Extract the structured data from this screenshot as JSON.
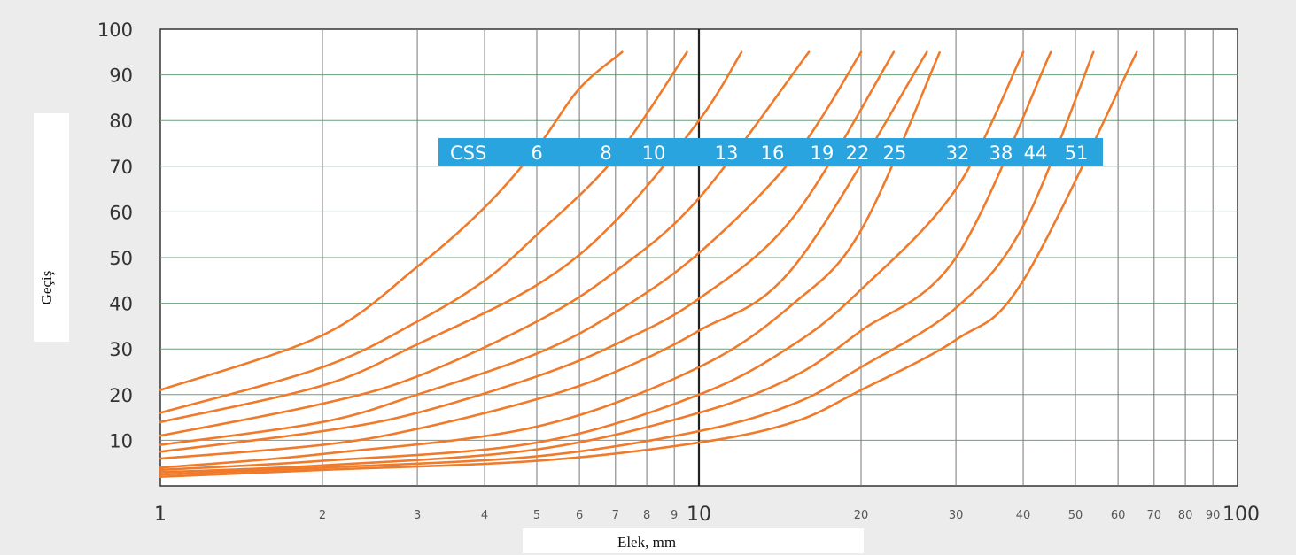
{
  "chart_data": {
    "type": "line",
    "xlabel": "Elek, mm",
    "ylabel": "Geçiş",
    "xscale": "log",
    "xlim": [
      1,
      100
    ],
    "ylim": [
      0,
      100
    ],
    "grid": true,
    "y_ticks": [
      10,
      20,
      30,
      40,
      50,
      60,
      70,
      80,
      90,
      100
    ],
    "x_ticks": [
      {
        "value": 1,
        "label": "1"
      },
      {
        "value": 2,
        "label": "2"
      },
      {
        "value": 3,
        "label": "3"
      },
      {
        "value": 4,
        "label": "4"
      },
      {
        "value": 5,
        "label": "5"
      },
      {
        "value": 6,
        "label": "6"
      },
      {
        "value": 7,
        "label": "7"
      },
      {
        "value": 8,
        "label": "8"
      },
      {
        "value": 9,
        "label": "9"
      },
      {
        "value": 10,
        "label": "10"
      },
      {
        "value": 20,
        "label": "20"
      },
      {
        "value": 30,
        "label": "30"
      },
      {
        "value": 40,
        "label": "40"
      },
      {
        "value": 50,
        "label": "50"
      },
      {
        "value": 60,
        "label": "60"
      },
      {
        "value": 70,
        "label": "70"
      },
      {
        "value": 80,
        "label": "80"
      },
      {
        "value": 90,
        "label": "90"
      },
      {
        "value": 100,
        "label": "100"
      }
    ],
    "legend_title": "CSS",
    "legend_placement": "upper-center",
    "line_color": "#f07a2a",
    "legend_bg": "#2aa4de",
    "series": [
      {
        "name": "6",
        "x": [
          1,
          2,
          3,
          4,
          5,
          6,
          7.2
        ],
        "y": [
          21,
          33,
          48,
          61,
          74,
          87,
          95
        ]
      },
      {
        "name": "8",
        "x": [
          1,
          2,
          3,
          4,
          5,
          7,
          9.5
        ],
        "y": [
          16,
          26,
          36,
          45,
          55,
          72,
          95
        ]
      },
      {
        "name": "10",
        "x": [
          1,
          2,
          3,
          5,
          7,
          10,
          12
        ],
        "y": [
          14,
          22,
          31,
          44,
          58,
          80,
          95
        ]
      },
      {
        "name": "13",
        "x": [
          1,
          2,
          3,
          5,
          7,
          10,
          16
        ],
        "y": [
          11,
          18,
          24,
          36,
          47,
          63,
          95
        ]
      },
      {
        "name": "16",
        "x": [
          1,
          2,
          3,
          5,
          7,
          10,
          15,
          20
        ],
        "y": [
          9,
          14,
          20,
          29,
          38,
          51,
          72,
          95
        ]
      },
      {
        "name": "19",
        "x": [
          1,
          2,
          3,
          5,
          7,
          10,
          15,
          23
        ],
        "y": [
          7.5,
          12,
          16,
          24,
          31,
          41,
          59,
          95
        ]
      },
      {
        "name": "22",
        "x": [
          1,
          2,
          3,
          5,
          7,
          10,
          15,
          26.5
        ],
        "y": [
          6,
          9,
          12.5,
          19,
          25,
          34,
          48,
          95
        ]
      },
      {
        "name": "25",
        "x": [
          1,
          2,
          5,
          10,
          15,
          20,
          28
        ],
        "y": [
          4,
          7,
          13,
          26,
          40,
          56,
          95
        ]
      },
      {
        "name": "32",
        "x": [
          1,
          2,
          5,
          10,
          15,
          20,
          30,
          40
        ],
        "y": [
          3.5,
          5.5,
          9.5,
          20,
          31,
          43,
          65,
          95
        ]
      },
      {
        "name": "38",
        "x": [
          1,
          2,
          5,
          10,
          15,
          20,
          30,
          45
        ],
        "y": [
          3,
          4.5,
          8,
          16,
          24,
          34,
          50,
          95
        ]
      },
      {
        "name": "44",
        "x": [
          1,
          2,
          5,
          10,
          15,
          20,
          30,
          40,
          54
        ],
        "y": [
          2.5,
          4,
          6.5,
          12,
          18,
          26,
          39,
          57,
          95
        ]
      },
      {
        "name": "51",
        "x": [
          1,
          2,
          5,
          10,
          15,
          20,
          30,
          40,
          65
        ],
        "y": [
          2,
          3.5,
          5.5,
          9.5,
          14,
          21,
          32,
          45,
          95
        ]
      }
    ]
  }
}
